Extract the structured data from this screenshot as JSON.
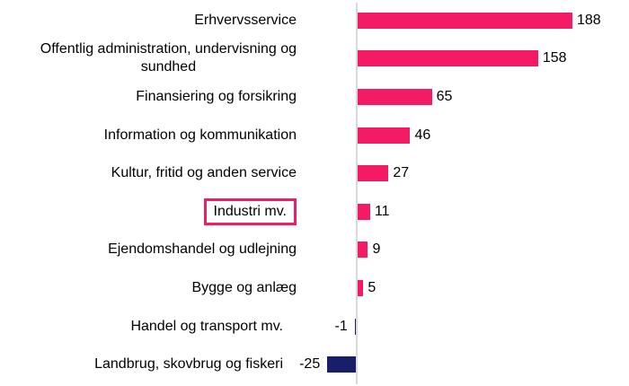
{
  "chart_data": {
    "type": "bar",
    "orientation": "horizontal",
    "title": null,
    "legend": null,
    "grid": false,
    "categories": [
      "Erhvervsservice",
      "Offentlig administration, undervisning og\nsundhed",
      "Finansiering og forsikring",
      "Information og kommunikation",
      "Kultur, fritid og anden service",
      "Industri mv.",
      "Ejendomshandel og udlejning",
      "Bygge og anlæg",
      "Handel og transport mv.",
      "Landbrug, skovbrug og fiskeri"
    ],
    "values": [
      188,
      158,
      65,
      46,
      27,
      11,
      9,
      5,
      -1,
      -25
    ],
    "value_labels": [
      "188",
      "158",
      "65",
      "46",
      "27",
      "11",
      "9",
      "5",
      "-1",
      "-25"
    ],
    "highlight_index": 5,
    "highlighted_category": "Industri mv.",
    "xlim": [
      -25,
      188
    ],
    "colors": {
      "positive_bar": "#f31a66",
      "negative_bar": "#181e69",
      "highlight_box": "#f31a66",
      "axis_line": "#d9d9d9",
      "label_text": "#000000"
    }
  }
}
